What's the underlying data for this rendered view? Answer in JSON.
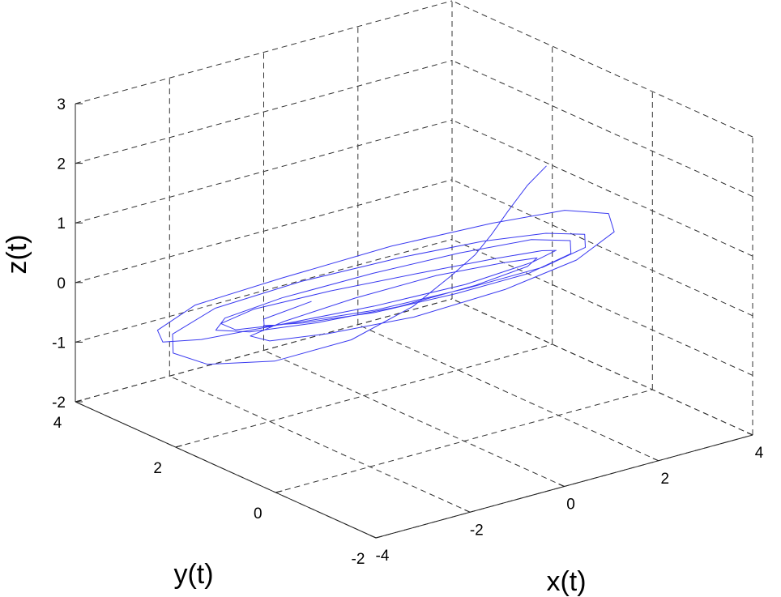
{
  "chart_data": {
    "type": "line",
    "projection": "3d",
    "xlabel": "x(t)",
    "ylabel": "y(t)",
    "zlabel": "z(t)",
    "xlim": [
      -4,
      4
    ],
    "ylim": [
      -2,
      4
    ],
    "zlim": [
      -2,
      3
    ],
    "xticks": [
      "-4",
      "-2",
      "0",
      "2",
      "4"
    ],
    "yticks": [
      "-2",
      "0",
      "2",
      "4"
    ],
    "zticks": [
      "-2",
      "-1",
      "0",
      "1",
      "2",
      "3"
    ],
    "grid": true,
    "line_color": "#3a3af0",
    "series": [
      {
        "points": [
          [
            2.6,
            0.8,
            1.75
          ],
          [
            2.3,
            0.9,
            1.45
          ],
          [
            2.0,
            1.0,
            1.05
          ],
          [
            1.7,
            1.05,
            0.7
          ],
          [
            1.4,
            1.1,
            0.4
          ],
          [
            1.0,
            1.2,
            0.1
          ],
          [
            0.3,
            1.3,
            -0.3
          ],
          [
            -0.8,
            1.5,
            -0.7
          ],
          [
            -2.0,
            1.9,
            -0.95
          ],
          [
            -2.9,
            2.4,
            -1.0
          ],
          [
            -3.2,
            2.8,
            -0.9
          ],
          [
            -3.0,
            3.0,
            -0.7
          ],
          [
            -2.2,
            2.9,
            -0.4
          ],
          [
            -0.8,
            2.5,
            -0.1
          ],
          [
            0.8,
            2.0,
            0.15
          ],
          [
            2.0,
            1.5,
            0.35
          ],
          [
            2.8,
            1.0,
            0.5
          ],
          [
            3.2,
            0.6,
            0.55
          ],
          [
            3.0,
            0.4,
            0.45
          ],
          [
            2.2,
            0.5,
            0.25
          ],
          [
            1.0,
            0.9,
            0.0
          ],
          [
            -0.4,
            1.4,
            -0.25
          ],
          [
            -1.6,
            2.0,
            -0.45
          ],
          [
            -2.3,
            2.4,
            -0.55
          ],
          [
            -2.4,
            2.6,
            -0.5
          ],
          [
            -1.8,
            2.5,
            -0.35
          ],
          [
            -0.6,
            2.1,
            -0.15
          ],
          [
            0.7,
            1.6,
            0.05
          ],
          [
            1.8,
            1.1,
            0.25
          ],
          [
            2.5,
            0.8,
            0.35
          ],
          [
            2.7,
            0.7,
            0.35
          ],
          [
            2.3,
            0.8,
            0.2
          ],
          [
            1.2,
            1.1,
            -0.05
          ],
          [
            -0.2,
            1.6,
            -0.3
          ],
          [
            -1.5,
            2.2,
            -0.55
          ],
          [
            -2.6,
            2.8,
            -0.8
          ],
          [
            -3.1,
            3.1,
            -0.85
          ],
          [
            -3.0,
            3.3,
            -0.75
          ],
          [
            -2.2,
            3.3,
            -0.5
          ],
          [
            -0.8,
            2.9,
            -0.2
          ],
          [
            0.9,
            2.3,
            0.2
          ],
          [
            2.3,
            1.6,
            0.55
          ],
          [
            3.2,
            1.0,
            0.8
          ],
          [
            3.6,
            0.5,
            0.85
          ],
          [
            3.4,
            0.2,
            0.7
          ],
          [
            2.6,
            0.2,
            0.4
          ],
          [
            1.4,
            0.5,
            0.05
          ],
          [
            0.0,
            1.0,
            -0.3
          ],
          [
            -1.2,
            1.6,
            -0.55
          ],
          [
            -2.0,
            2.0,
            -0.65
          ],
          [
            -2.2,
            2.2,
            -0.6
          ],
          [
            -1.6,
            2.1,
            -0.45
          ],
          [
            -0.4,
            1.8,
            -0.2
          ],
          [
            0.9,
            1.4,
            0.05
          ],
          [
            1.9,
            1.0,
            0.2
          ],
          [
            2.4,
            0.8,
            0.25
          ],
          [
            2.2,
            0.8,
            0.15
          ],
          [
            1.3,
            1.0,
            -0.05
          ],
          [
            0.1,
            1.4,
            -0.3
          ],
          [
            -1.1,
            1.9,
            -0.5
          ],
          [
            -2.0,
            2.4,
            -0.65
          ],
          [
            -2.4,
            2.7,
            -0.65
          ],
          [
            -2.1,
            2.8,
            -0.55
          ],
          [
            -1.1,
            2.6,
            -0.35
          ],
          [
            0.3,
            2.1,
            -0.05
          ],
          [
            1.6,
            1.6,
            0.2
          ],
          [
            2.6,
            1.1,
            0.4
          ],
          [
            3.0,
            0.7,
            0.45
          ],
          [
            2.8,
            0.5,
            0.35
          ],
          [
            2.0,
            0.6,
            0.15
          ],
          [
            0.9,
            1.0,
            -0.1
          ],
          [
            -0.3,
            1.5,
            -0.35
          ],
          [
            -1.3,
            2.0,
            -0.5
          ],
          [
            -1.8,
            2.3,
            -0.55
          ],
          [
            -1.7,
            2.4,
            -0.5
          ],
          [
            -0.9,
            2.2,
            -0.3
          ]
        ]
      }
    ]
  }
}
